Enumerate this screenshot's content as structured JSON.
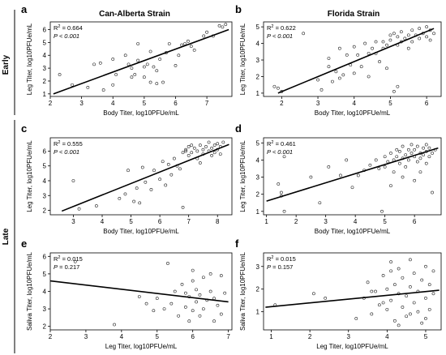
{
  "figure": {
    "column_titles": [
      "Can-Alberta Strain",
      "Florida Strain"
    ],
    "row_labels": [
      "Early",
      "Late"
    ]
  },
  "chart_data": [
    {
      "id": "a",
      "type": "scatter",
      "letter": "a",
      "xlabel": "Body Titer, log10PFUe/mL",
      "ylabel": "Leg Titer, log10PFUe/mL",
      "xlim": [
        2,
        7.8
      ],
      "ylim": [
        0.8,
        6.6
      ],
      "xticks": [
        2,
        3,
        4,
        5,
        6,
        7
      ],
      "yticks": [
        1,
        2,
        3,
        4,
        5,
        6
      ],
      "r2_label": "R",
      "r2_sup": "2",
      "r2_value": " = 0.664",
      "p_label": "P",
      "p_value": " < 0.001",
      "fit": {
        "x": [
          2.1,
          7.7
        ],
        "y": [
          1.0,
          6.0
        ]
      },
      "points": [
        [
          2.3,
          2.5
        ],
        [
          2.7,
          1.7
        ],
        [
          3.2,
          1.5
        ],
        [
          3.4,
          3.3
        ],
        [
          3.6,
          3.4
        ],
        [
          3.7,
          1.3
        ],
        [
          4.0,
          3.7
        ],
        [
          4.0,
          1.7
        ],
        [
          4.1,
          2.5
        ],
        [
          4.4,
          4.0
        ],
        [
          4.5,
          3.3
        ],
        [
          4.6,
          3.0
        ],
        [
          4.6,
          2.3
        ],
        [
          4.7,
          2.5
        ],
        [
          4.8,
          3.6
        ],
        [
          4.8,
          4.9
        ],
        [
          5.0,
          3.1
        ],
        [
          5.0,
          2.3
        ],
        [
          5.1,
          3.3
        ],
        [
          5.2,
          1.9
        ],
        [
          5.2,
          4.3
        ],
        [
          5.3,
          3.1
        ],
        [
          5.4,
          1.8
        ],
        [
          5.4,
          2.8
        ],
        [
          5.5,
          3.7
        ],
        [
          5.6,
          1.9
        ],
        [
          5.7,
          4.2
        ],
        [
          5.8,
          4.9
        ],
        [
          6.0,
          3.2
        ],
        [
          6.1,
          4.0
        ],
        [
          6.2,
          4.8
        ],
        [
          6.3,
          4.9
        ],
        [
          6.4,
          5.1
        ],
        [
          6.5,
          4.7
        ],
        [
          6.6,
          4.4
        ],
        [
          6.9,
          5.5
        ],
        [
          7.0,
          5.8
        ],
        [
          7.2,
          5.5
        ],
        [
          7.4,
          6.3
        ],
        [
          7.5,
          6.2
        ],
        [
          7.6,
          6.4
        ]
      ]
    },
    {
      "id": "b",
      "type": "scatter",
      "letter": "b",
      "xlabel": "Body Titer, log10PFUe/mL",
      "ylabel": "Leg Titer, log10PFUe/mL",
      "xlim": [
        1.5,
        6.4
      ],
      "ylim": [
        0.8,
        5.3
      ],
      "xticks": [
        2,
        3,
        4,
        5,
        6
      ],
      "yticks": [
        1,
        2,
        3,
        4,
        5
      ],
      "r2_label": "R",
      "r2_sup": "2",
      "r2_value": " = 0.622",
      "p_label": "P",
      "p_value": " < 0.001",
      "fit": {
        "x": [
          1.9,
          6.2
        ],
        "y": [
          1.0,
          4.9
        ]
      },
      "points": [
        [
          1.8,
          1.4
        ],
        [
          1.9,
          1.3
        ],
        [
          2.0,
          1.1
        ],
        [
          2.6,
          4.6
        ],
        [
          3.0,
          1.8
        ],
        [
          3.1,
          1.2
        ],
        [
          3.3,
          3.1
        ],
        [
          3.3,
          2.6
        ],
        [
          3.4,
          1.7
        ],
        [
          3.5,
          2.3
        ],
        [
          3.6,
          1.9
        ],
        [
          3.6,
          3.7
        ],
        [
          3.7,
          2.1
        ],
        [
          3.8,
          3.3
        ],
        [
          3.9,
          2.7
        ],
        [
          4.0,
          3.8
        ],
        [
          4.0,
          2.2
        ],
        [
          4.1,
          3.3
        ],
        [
          4.2,
          2.6
        ],
        [
          4.3,
          4.0
        ],
        [
          4.4,
          3.4
        ],
        [
          4.4,
          2.0
        ],
        [
          4.5,
          3.7
        ],
        [
          4.6,
          3.4
        ],
        [
          4.6,
          4.1
        ],
        [
          4.7,
          2.9
        ],
        [
          4.8,
          3.7
        ],
        [
          4.8,
          4.1
        ],
        [
          4.9,
          3.9
        ],
        [
          5.0,
          4.5
        ],
        [
          5.0,
          4.2
        ],
        [
          5.1,
          4.6
        ],
        [
          5.2,
          4.4
        ],
        [
          5.2,
          3.9
        ],
        [
          5.3,
          4.1
        ],
        [
          5.3,
          4.7
        ],
        [
          5.4,
          4.3
        ],
        [
          5.5,
          4.5
        ],
        [
          5.5,
          3.7
        ],
        [
          5.6,
          4.8
        ],
        [
          5.6,
          4.1
        ],
        [
          5.7,
          4.5
        ],
        [
          5.8,
          4.3
        ],
        [
          5.8,
          4.9
        ],
        [
          5.9,
          4.6
        ],
        [
          6.0,
          4.4
        ],
        [
          6.0,
          5.0
        ],
        [
          6.1,
          4.8
        ],
        [
          6.1,
          4.2
        ],
        [
          6.2,
          4.6
        ],
        [
          5.1,
          1.1
        ],
        [
          5.2,
          1.4
        ],
        [
          4.9,
          2.5
        ]
      ]
    },
    {
      "id": "c",
      "type": "scatter",
      "letter": "c",
      "xlabel": "Body Titer, log10PFUe/mL",
      "ylabel": "Leg Titer, log10PFUe/mL",
      "xlim": [
        2.2,
        8.5
      ],
      "ylim": [
        1.7,
        6.9
      ],
      "xticks": [
        3,
        4,
        5,
        6,
        7,
        8
      ],
      "yticks": [
        2,
        3,
        4,
        5,
        6
      ],
      "r2_label": "R",
      "r2_sup": "2",
      "r2_value": " = 0.555",
      "p_label": "P",
      "p_value": " < 0.001",
      "fit": {
        "x": [
          2.6,
          8.4
        ],
        "y": [
          1.95,
          6.45
        ]
      },
      "points": [
        [
          3.0,
          4.0
        ],
        [
          3.2,
          2.1
        ],
        [
          3.8,
          2.3
        ],
        [
          4.6,
          2.8
        ],
        [
          4.8,
          3.1
        ],
        [
          4.9,
          4.7
        ],
        [
          5.1,
          2.6
        ],
        [
          5.2,
          3.5
        ],
        [
          5.3,
          2.5
        ],
        [
          5.4,
          4.9
        ],
        [
          5.5,
          3.9
        ],
        [
          5.7,
          3.4
        ],
        [
          5.8,
          4.7
        ],
        [
          6.0,
          4.1
        ],
        [
          6.1,
          5.3
        ],
        [
          6.2,
          3.7
        ],
        [
          6.3,
          5.1
        ],
        [
          6.4,
          4.4
        ],
        [
          6.5,
          5.5
        ],
        [
          6.6,
          5.0
        ],
        [
          6.7,
          4.8
        ],
        [
          6.8,
          5.9
        ],
        [
          6.8,
          2.2
        ],
        [
          6.9,
          6.1
        ],
        [
          7.0,
          5.7
        ],
        [
          7.0,
          6.3
        ],
        [
          7.1,
          5.9
        ],
        [
          7.2,
          6.2
        ],
        [
          7.3,
          6.0
        ],
        [
          7.3,
          5.5
        ],
        [
          7.4,
          6.4
        ],
        [
          7.5,
          6.1
        ],
        [
          7.5,
          5.8
        ],
        [
          7.6,
          6.3
        ],
        [
          7.7,
          6.0
        ],
        [
          7.7,
          6.6
        ],
        [
          7.8,
          5.7
        ],
        [
          7.8,
          6.2
        ],
        [
          7.9,
          6.4
        ],
        [
          7.9,
          5.9
        ],
        [
          8.0,
          6.1
        ],
        [
          8.0,
          6.5
        ],
        [
          8.1,
          5.8
        ],
        [
          8.1,
          6.3
        ],
        [
          8.2,
          6.6
        ],
        [
          6.9,
          6.0
        ],
        [
          7.1,
          6.4
        ],
        [
          7.4,
          5.2
        ]
      ]
    },
    {
      "id": "d",
      "type": "scatter",
      "letter": "d",
      "xlabel": "Body Titer, log10PFUe/mL",
      "ylabel": "Leg Titer, log10PFUe/mL",
      "xlim": [
        0.9,
        6.9
      ],
      "ylim": [
        0.8,
        5.3
      ],
      "xticks": [
        1,
        2,
        3,
        4,
        5,
        6
      ],
      "yticks": [
        1,
        2,
        3,
        4,
        5
      ],
      "r2_label": "R",
      "r2_sup": "2",
      "r2_value": " = 0.461",
      "p_label": "P",
      "p_value": " < 0.001",
      "fit": {
        "x": [
          1.0,
          6.8
        ],
        "y": [
          1.6,
          4.7
        ]
      },
      "points": [
        [
          1.4,
          2.6
        ],
        [
          1.5,
          2.1
        ],
        [
          1.5,
          1.9
        ],
        [
          1.6,
          1.0
        ],
        [
          1.6,
          4.2
        ],
        [
          2.5,
          3.0
        ],
        [
          2.8,
          1.5
        ],
        [
          3.1,
          3.6
        ],
        [
          3.5,
          3.1
        ],
        [
          3.7,
          4.0
        ],
        [
          3.9,
          2.4
        ],
        [
          4.1,
          3.1
        ],
        [
          4.3,
          3.4
        ],
        [
          4.5,
          3.7
        ],
        [
          4.7,
          4.0
        ],
        [
          4.8,
          3.5
        ],
        [
          4.9,
          1.0
        ],
        [
          5.0,
          4.2
        ],
        [
          5.0,
          3.6
        ],
        [
          5.1,
          3.9
        ],
        [
          5.2,
          4.4
        ],
        [
          5.3,
          4.0
        ],
        [
          5.3,
          3.3
        ],
        [
          5.4,
          4.6
        ],
        [
          5.4,
          4.2
        ],
        [
          5.5,
          3.8
        ],
        [
          5.5,
          4.5
        ],
        [
          5.6,
          4.1
        ],
        [
          5.6,
          4.8
        ],
        [
          5.7,
          4.3
        ],
        [
          5.7,
          3.6
        ],
        [
          5.8,
          4.6
        ],
        [
          5.8,
          4.0
        ],
        [
          5.9,
          4.4
        ],
        [
          5.9,
          4.9
        ],
        [
          6.0,
          4.2
        ],
        [
          6.0,
          4.6
        ],
        [
          6.1,
          3.9
        ],
        [
          6.1,
          4.8
        ],
        [
          6.2,
          4.4
        ],
        [
          6.2,
          4.1
        ],
        [
          6.3,
          4.7
        ],
        [
          6.3,
          4.3
        ],
        [
          6.4,
          4.5
        ],
        [
          6.4,
          4.9
        ],
        [
          6.5,
          4.2
        ],
        [
          6.5,
          4.7
        ],
        [
          6.6,
          4.4
        ],
        [
          6.6,
          2.1
        ],
        [
          6.7,
          4.6
        ],
        [
          6.0,
          2.8
        ],
        [
          5.2,
          2.5
        ],
        [
          5.6,
          3.0
        ],
        [
          6.2,
          3.3
        ],
        [
          6.4,
          3.8
        ]
      ]
    },
    {
      "id": "e",
      "type": "scatter",
      "letter": "e",
      "xlabel": "Leg Titer, log10PFUe/mL",
      "ylabel": "Saliva Titer, log10PFUe/mL",
      "xlim": [
        2,
        7.1
      ],
      "ylim": [
        1.8,
        6.2
      ],
      "xticks": [
        2,
        3,
        4,
        5,
        6,
        7
      ],
      "yticks": [
        2,
        3,
        4,
        5,
        6
      ],
      "r2_label": "R",
      "r2_sup": "2",
      "r2_value": " = 0.015",
      "p_label": "P",
      "p_value": " = 0.217",
      "fit": {
        "x": [
          2.0,
          7.0
        ],
        "y": [
          4.6,
          3.4
        ]
      },
      "points": [
        [
          2.7,
          5.7
        ],
        [
          3.8,
          2.1
        ],
        [
          4.5,
          3.7
        ],
        [
          4.7,
          3.3
        ],
        [
          4.9,
          2.9
        ],
        [
          5.0,
          3.6
        ],
        [
          5.2,
          3.0
        ],
        [
          5.3,
          5.6
        ],
        [
          5.4,
          3.3
        ],
        [
          5.5,
          4.0
        ],
        [
          5.6,
          2.6
        ],
        [
          5.7,
          4.4
        ],
        [
          5.8,
          3.9
        ],
        [
          5.8,
          3.1
        ],
        [
          5.9,
          3.7
        ],
        [
          6.0,
          4.6
        ],
        [
          6.0,
          2.9
        ],
        [
          6.1,
          3.4
        ],
        [
          6.1,
          4.1
        ],
        [
          6.2,
          3.8
        ],
        [
          6.3,
          3.0
        ],
        [
          6.3,
          4.8
        ],
        [
          6.4,
          3.5
        ],
        [
          6.5,
          4.0
        ],
        [
          6.6,
          2.3
        ],
        [
          6.6,
          3.6
        ],
        [
          6.7,
          3.2
        ],
        [
          6.8,
          4.9
        ],
        [
          6.8,
          2.7
        ],
        [
          6.9,
          3.9
        ],
        [
          6.0,
          5.2
        ],
        [
          6.5,
          5.0
        ],
        [
          5.9,
          2.3
        ],
        [
          6.2,
          2.6
        ]
      ]
    },
    {
      "id": "f",
      "type": "scatter",
      "letter": "f",
      "xlabel": "Leg Titer, log10PFUe/mL",
      "ylabel": "Saliva Titer, log10PFUe/mL",
      "xlim": [
        0.8,
        5.4
      ],
      "ylim": [
        0.2,
        3.6
      ],
      "xticks": [
        1,
        2,
        3,
        4,
        5
      ],
      "yticks": [
        1,
        2,
        3
      ],
      "r2_label": "R",
      "r2_sup": "2",
      "r2_value": " = 0.015",
      "p_label": "P",
      "p_value": " = 0.157",
      "fit": {
        "x": [
          0.85,
          5.35
        ],
        "y": [
          1.2,
          1.95
        ]
      },
      "points": [
        [
          1.1,
          1.3
        ],
        [
          2.1,
          1.8
        ],
        [
          2.4,
          1.6
        ],
        [
          3.2,
          0.7
        ],
        [
          3.4,
          1.6
        ],
        [
          3.5,
          2.3
        ],
        [
          3.6,
          0.9
        ],
        [
          3.7,
          1.9
        ],
        [
          3.8,
          1.3
        ],
        [
          3.9,
          2.6
        ],
        [
          4.0,
          1.1
        ],
        [
          4.0,
          2.0
        ],
        [
          4.1,
          1.5
        ],
        [
          4.1,
          3.2
        ],
        [
          4.2,
          0.6
        ],
        [
          4.2,
          2.2
        ],
        [
          4.3,
          1.8
        ],
        [
          4.3,
          2.9
        ],
        [
          4.4,
          1.2
        ],
        [
          4.4,
          2.5
        ],
        [
          4.5,
          0.8
        ],
        [
          4.5,
          1.7
        ],
        [
          4.6,
          2.1
        ],
        [
          4.6,
          3.3
        ],
        [
          4.7,
          1.4
        ],
        [
          4.7,
          2.7
        ],
        [
          4.8,
          1.0
        ],
        [
          4.8,
          1.9
        ],
        [
          4.9,
          2.4
        ],
        [
          4.9,
          0.5
        ],
        [
          5.0,
          1.6
        ],
        [
          5.0,
          3.0
        ],
        [
          5.1,
          2.2
        ],
        [
          5.1,
          1.1
        ],
        [
          5.2,
          1.8
        ],
        [
          5.2,
          2.8
        ],
        [
          4.3,
          0.4
        ],
        [
          3.6,
          1.9
        ],
        [
          3.9,
          1.4
        ],
        [
          4.6,
          0.9
        ],
        [
          5.0,
          0.7
        ],
        [
          4.1,
          2.8
        ]
      ]
    }
  ]
}
